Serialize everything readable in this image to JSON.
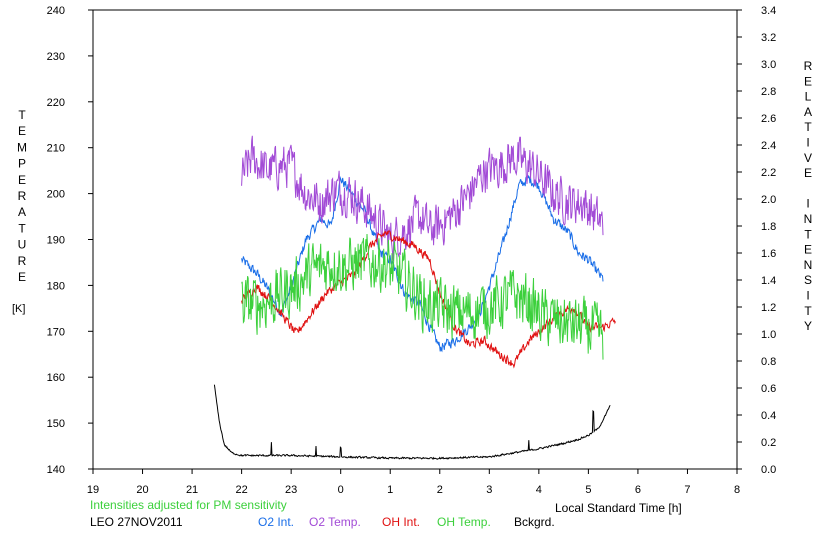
{
  "chart_data": {
    "type": "line",
    "left_axis_label_letters": [
      "T",
      "E",
      "M",
      "P",
      "E",
      "R",
      "A",
      "T",
      "U",
      "R",
      "E"
    ],
    "left_axis_unit": "[K]",
    "right_axis_label_letters": [
      "R",
      "E",
      "L",
      "A",
      "T",
      "I",
      "V",
      "E",
      "",
      "I",
      "N",
      "T",
      "E",
      "N",
      "S",
      "I",
      "T",
      "Y"
    ],
    "xlabel": "Local Standard Time [h]",
    "note": "Intensities adjusted for PM sensitivity",
    "station_date": "LEO 27NOV2011",
    "x_ticks": [
      "19",
      "20",
      "21",
      "22",
      "23",
      "0",
      "1",
      "2",
      "3",
      "4",
      "5",
      "6",
      "7",
      "8"
    ],
    "y_left_range": [
      140,
      240
    ],
    "y_left_ticks": [
      "140",
      "150",
      "160",
      "170",
      "180",
      "190",
      "200",
      "210",
      "220",
      "230",
      "240"
    ],
    "y_right_range": [
      0.0,
      3.4
    ],
    "y_right_ticks": [
      "0.0",
      "0.2",
      "0.4",
      "0.6",
      "0.8",
      "1.0",
      "1.2",
      "1.4",
      "1.6",
      "1.8",
      "2.0",
      "2.2",
      "2.4",
      "2.6",
      "2.8",
      "3.0",
      "3.2",
      "3.4"
    ],
    "x_range_hours_since_19": [
      0,
      13
    ],
    "series": [
      {
        "name": "O2 Int.",
        "axis": "right",
        "color": "#1a6ee8",
        "noise": 0.035,
        "points": [
          [
            22.0,
            1.55
          ],
          [
            22.3,
            1.45
          ],
          [
            22.5,
            1.35
          ],
          [
            22.8,
            1.15
          ],
          [
            23.0,
            1.35
          ],
          [
            23.3,
            1.7
          ],
          [
            23.6,
            1.85
          ],
          [
            23.8,
            1.8
          ],
          [
            24.0,
            2.15
          ],
          [
            24.2,
            2.05
          ],
          [
            24.5,
            1.9
          ],
          [
            24.8,
            1.6
          ],
          [
            25.0,
            1.55
          ],
          [
            25.3,
            1.3
          ],
          [
            25.6,
            1.22
          ],
          [
            25.8,
            1.05
          ],
          [
            26.0,
            0.9
          ],
          [
            26.3,
            0.95
          ],
          [
            26.6,
            1.05
          ],
          [
            26.8,
            1.15
          ],
          [
            27.0,
            1.35
          ],
          [
            27.3,
            1.7
          ],
          [
            27.6,
            2.1
          ],
          [
            27.8,
            2.15
          ],
          [
            28.0,
            2.1
          ],
          [
            28.3,
            1.85
          ],
          [
            28.6,
            1.75
          ],
          [
            28.8,
            1.6
          ],
          [
            29.0,
            1.55
          ],
          [
            29.3,
            1.4
          ]
        ]
      },
      {
        "name": "O2 Temp.",
        "axis": "left",
        "color": "#a24bd6",
        "noise": 4.2,
        "points": [
          [
            22.0,
            203
          ],
          [
            22.2,
            208
          ],
          [
            22.5,
            205
          ],
          [
            22.8,
            206
          ],
          [
            23.0,
            206
          ],
          [
            23.3,
            200
          ],
          [
            23.6,
            198
          ],
          [
            23.9,
            201
          ],
          [
            24.2,
            200
          ],
          [
            24.5,
            197
          ],
          [
            24.8,
            193
          ],
          [
            25.0,
            190
          ],
          [
            25.3,
            192
          ],
          [
            25.6,
            195
          ],
          [
            25.8,
            192
          ],
          [
            26.0,
            193
          ],
          [
            26.3,
            196
          ],
          [
            26.6,
            200
          ],
          [
            26.9,
            205
          ],
          [
            27.2,
            206
          ],
          [
            27.5,
            208
          ],
          [
            27.8,
            206
          ],
          [
            28.0,
            204
          ],
          [
            28.3,
            200
          ],
          [
            28.6,
            198
          ],
          [
            28.9,
            198
          ],
          [
            29.3,
            193
          ]
        ]
      },
      {
        "name": "OH Int.",
        "axis": "right",
        "color": "#e01010",
        "noise": 0.03,
        "points": [
          [
            22.0,
            1.25
          ],
          [
            22.3,
            1.35
          ],
          [
            22.6,
            1.25
          ],
          [
            22.9,
            1.1
          ],
          [
            23.1,
            1.0
          ],
          [
            23.4,
            1.15
          ],
          [
            23.7,
            1.3
          ],
          [
            24.0,
            1.38
          ],
          [
            24.3,
            1.45
          ],
          [
            24.6,
            1.65
          ],
          [
            24.9,
            1.75
          ],
          [
            25.2,
            1.7
          ],
          [
            25.5,
            1.65
          ],
          [
            25.8,
            1.55
          ],
          [
            26.0,
            1.3
          ],
          [
            26.3,
            1.05
          ],
          [
            26.6,
            0.92
          ],
          [
            26.9,
            0.95
          ],
          [
            27.2,
            0.85
          ],
          [
            27.5,
            0.78
          ],
          [
            27.8,
            0.95
          ],
          [
            28.1,
            1.05
          ],
          [
            28.4,
            1.15
          ],
          [
            28.7,
            1.2
          ],
          [
            29.0,
            1.05
          ],
          [
            29.3,
            1.05
          ],
          [
            29.55,
            1.1
          ]
        ]
      },
      {
        "name": "OH Temp.",
        "axis": "left",
        "color": "#3cd03c",
        "noise": 5.5,
        "points": [
          [
            22.0,
            176
          ],
          [
            22.4,
            176
          ],
          [
            22.8,
            178
          ],
          [
            23.1,
            180
          ],
          [
            23.4,
            183
          ],
          [
            23.8,
            185
          ],
          [
            24.1,
            184
          ],
          [
            24.4,
            185
          ],
          [
            24.8,
            185
          ],
          [
            25.1,
            183
          ],
          [
            25.4,
            180
          ],
          [
            25.7,
            176
          ],
          [
            26.0,
            175
          ],
          [
            26.3,
            174
          ],
          [
            26.6,
            174
          ],
          [
            26.9,
            175
          ],
          [
            27.2,
            176
          ],
          [
            27.5,
            178
          ],
          [
            27.8,
            176
          ],
          [
            28.1,
            173
          ],
          [
            28.4,
            172
          ],
          [
            28.8,
            171
          ],
          [
            29.1,
            170
          ],
          [
            29.3,
            169
          ]
        ]
      },
      {
        "name": "Bckgrd.",
        "axis": "right",
        "color": "#000000",
        "noise": 0.006,
        "points": [
          [
            21.45,
            0.62
          ],
          [
            21.55,
            0.35
          ],
          [
            21.65,
            0.18
          ],
          [
            21.8,
            0.12
          ],
          [
            22.0,
            0.1
          ],
          [
            22.5,
            0.1
          ],
          [
            23.0,
            0.1
          ],
          [
            24.0,
            0.09
          ],
          [
            25.0,
            0.08
          ],
          [
            26.0,
            0.08
          ],
          [
            27.0,
            0.09
          ],
          [
            27.5,
            0.12
          ],
          [
            28.0,
            0.15
          ],
          [
            28.5,
            0.19
          ],
          [
            28.8,
            0.22
          ],
          [
            29.0,
            0.25
          ],
          [
            29.2,
            0.3
          ],
          [
            29.35,
            0.4
          ],
          [
            29.45,
            0.48
          ]
        ],
        "spikes": [
          [
            22.6,
            0.1
          ],
          [
            23.5,
            0.08
          ],
          [
            24.0,
            0.07
          ],
          [
            27.8,
            0.07
          ],
          [
            29.1,
            0.15
          ]
        ]
      }
    ]
  }
}
